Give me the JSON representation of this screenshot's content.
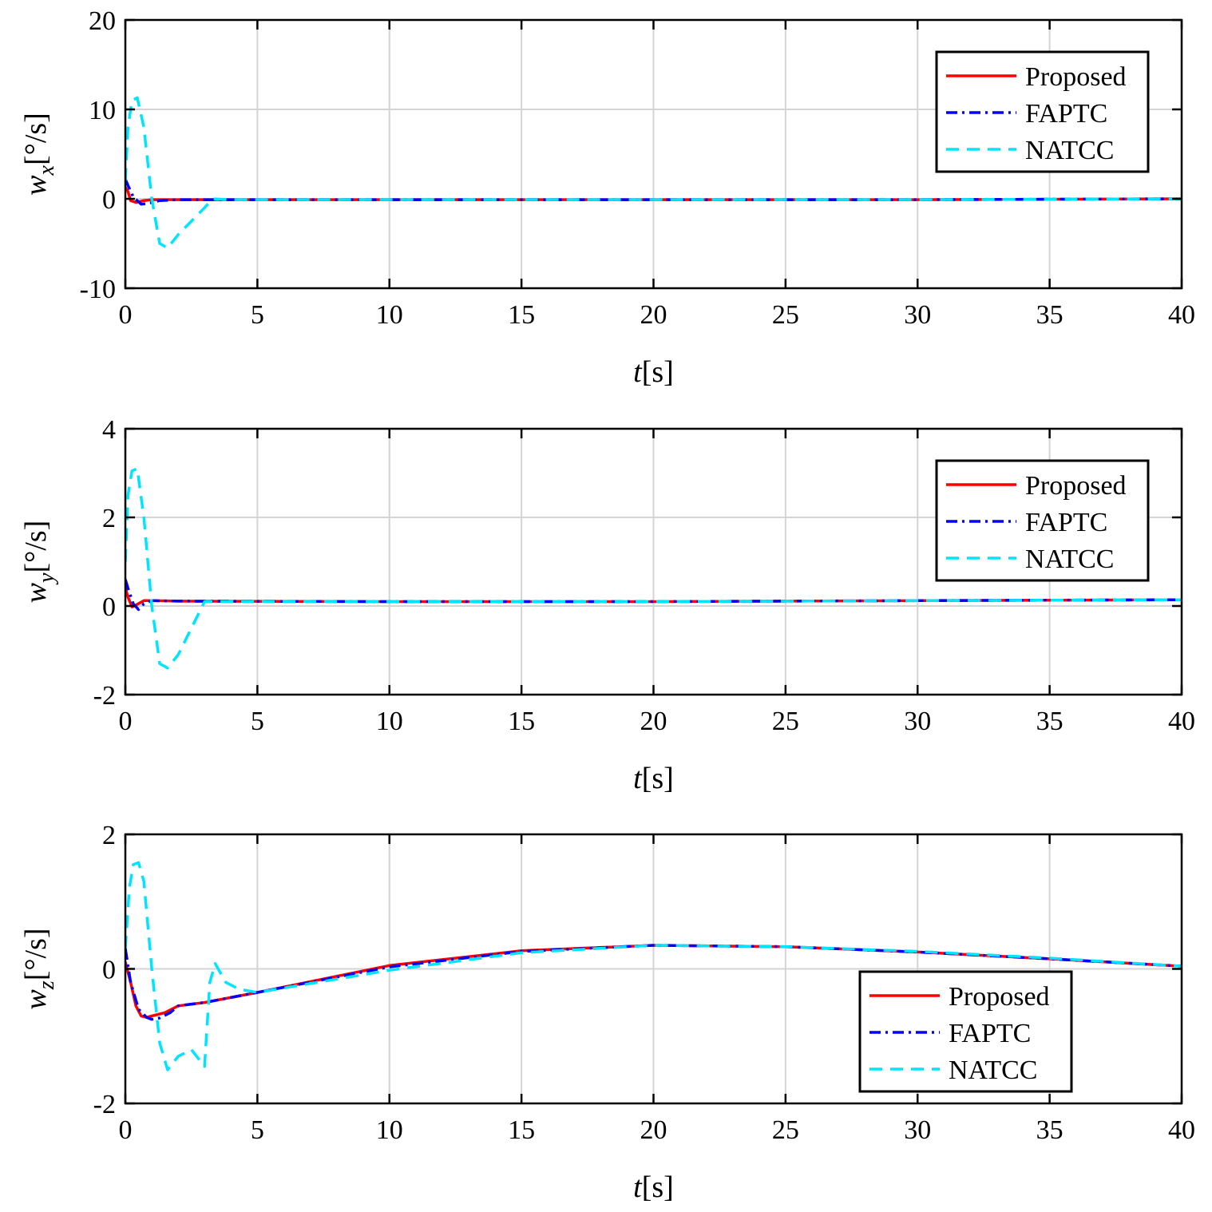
{
  "chart_data": [
    {
      "type": "line",
      "xlabel": "t[s]",
      "xlabel_var": "t",
      "xlabel_unit": "[s]",
      "ylabel_var": "w",
      "ylabel_sub": "x",
      "ylabel_unit": "[°/s]",
      "xlim": [
        0,
        40
      ],
      "ylim": [
        -10,
        20
      ],
      "xticks": [
        0,
        5,
        10,
        15,
        20,
        25,
        30,
        35,
        40
      ],
      "yticks": [
        -10,
        0,
        10,
        20
      ],
      "grid": true,
      "legend_position": "top-right",
      "series": [
        {
          "name": "Proposed",
          "color": "#ff0000",
          "style": "solid",
          "x": [
            0,
            0.1,
            0.2,
            0.4,
            0.7,
            1,
            3,
            10,
            20,
            30,
            40
          ],
          "y": [
            1.3,
            0.8,
            -0.2,
            -0.4,
            -0.2,
            -0.1,
            -0.1,
            -0.1,
            -0.1,
            -0.1,
            0
          ]
        },
        {
          "name": "FAPTC",
          "color": "#0000ff",
          "style": "dashdot",
          "x": [
            0,
            0.1,
            0.3,
            0.6,
            0.9,
            1.3,
            2,
            4,
            10,
            20,
            30,
            40
          ],
          "y": [
            2.2,
            1.5,
            0.2,
            -0.6,
            -0.5,
            -0.2,
            -0.1,
            -0.1,
            -0.1,
            -0.1,
            -0.1,
            0
          ]
        },
        {
          "name": "NATCC",
          "color": "#00e5ff",
          "style": "dashed",
          "x": [
            0,
            0.1,
            0.25,
            0.45,
            0.7,
            1,
            1.3,
            1.6,
            2,
            2.5,
            3,
            3.3,
            4,
            10,
            20,
            30,
            40
          ],
          "y": [
            2,
            8,
            11,
            11.3,
            8,
            0,
            -5,
            -5.5,
            -4,
            -2.5,
            -1,
            0,
            -0.1,
            -0.1,
            -0.1,
            -0.1,
            0
          ]
        }
      ]
    },
    {
      "type": "line",
      "xlabel": "t[s]",
      "xlabel_var": "t",
      "xlabel_unit": "[s]",
      "ylabel_var": "w",
      "ylabel_sub": "y",
      "ylabel_unit": "[°/s]",
      "xlim": [
        0,
        40
      ],
      "ylim": [
        -2,
        4
      ],
      "xticks": [
        0,
        5,
        10,
        15,
        20,
        25,
        30,
        35,
        40
      ],
      "yticks": [
        -2,
        0,
        2,
        4
      ],
      "grid": true,
      "legend_position": "top-right",
      "series": [
        {
          "name": "Proposed",
          "color": "#ff0000",
          "style": "solid",
          "x": [
            0,
            0.1,
            0.25,
            0.4,
            0.7,
            1,
            2,
            10,
            20,
            30,
            40
          ],
          "y": [
            0.4,
            0.2,
            -0.02,
            0.02,
            0.12,
            0.12,
            0.11,
            0.1,
            0.1,
            0.12,
            0.14
          ]
        },
        {
          "name": "FAPTC",
          "color": "#0000ff",
          "style": "dashdot",
          "x": [
            0,
            0.1,
            0.3,
            0.5,
            0.7,
            1,
            2,
            10,
            20,
            30,
            40
          ],
          "y": [
            0.6,
            0.4,
            0.05,
            -0.08,
            0.05,
            0.12,
            0.11,
            0.1,
            0.1,
            0.12,
            0.14
          ]
        },
        {
          "name": "NATCC",
          "color": "#00e5ff",
          "style": "dashed",
          "x": [
            0,
            0.1,
            0.25,
            0.45,
            0.7,
            1,
            1.3,
            1.6,
            2,
            2.5,
            3,
            3.5,
            10,
            20,
            30,
            40
          ],
          "y": [
            1,
            2.5,
            3.05,
            3.1,
            2,
            0,
            -1.3,
            -1.4,
            -1.1,
            -0.5,
            0.1,
            0.1,
            0.1,
            0.1,
            0.12,
            0.14
          ]
        }
      ]
    },
    {
      "type": "line",
      "xlabel": "t[s]",
      "xlabel_var": "t",
      "xlabel_unit": "[s]",
      "ylabel_var": "w",
      "ylabel_sub": "z",
      "ylabel_unit": "[°/s]",
      "xlim": [
        0,
        40
      ],
      "ylim": [
        -2,
        2
      ],
      "xticks": [
        0,
        5,
        10,
        15,
        20,
        25,
        30,
        35,
        40
      ],
      "yticks": [
        -2,
        0,
        2
      ],
      "grid": true,
      "legend_position": "bottom-right",
      "series": [
        {
          "name": "Proposed",
          "color": "#ff0000",
          "style": "solid",
          "x": [
            0,
            0.2,
            0.4,
            0.6,
            0.8,
            1,
            1.5,
            2,
            3,
            5,
            10,
            15,
            20,
            25,
            30,
            35,
            40
          ],
          "y": [
            0.1,
            -0.2,
            -0.55,
            -0.7,
            -0.72,
            -0.7,
            -0.65,
            -0.55,
            -0.5,
            -0.35,
            0.05,
            0.27,
            0.35,
            0.33,
            0.25,
            0.15,
            0.04
          ]
        },
        {
          "name": "FAPTC",
          "color": "#0000ff",
          "style": "dashdot",
          "x": [
            0,
            0.2,
            0.5,
            0.8,
            1,
            1.3,
            1.7,
            2,
            3,
            5,
            10,
            15,
            20,
            25,
            30,
            35,
            40
          ],
          "y": [
            0.3,
            -0.2,
            -0.6,
            -0.72,
            -0.75,
            -0.73,
            -0.65,
            -0.55,
            -0.5,
            -0.35,
            0.03,
            0.26,
            0.35,
            0.33,
            0.25,
            0.15,
            0.04
          ]
        },
        {
          "name": "NATCC",
          "color": "#00e5ff",
          "style": "dashed",
          "x": [
            0,
            0.15,
            0.3,
            0.5,
            0.7,
            1,
            1.3,
            1.6,
            2,
            2.5,
            3,
            3.2,
            3.4,
            3.8,
            4.3,
            5,
            10,
            15,
            20,
            25,
            30,
            35,
            40
          ],
          "y": [
            0.3,
            1.2,
            1.55,
            1.58,
            1.3,
            0,
            -1.1,
            -1.5,
            -1.3,
            -1.2,
            -1.45,
            -0.2,
            0.08,
            -0.2,
            -0.3,
            -0.35,
            -0.02,
            0.24,
            0.35,
            0.33,
            0.26,
            0.16,
            0.04
          ]
        }
      ]
    }
  ]
}
